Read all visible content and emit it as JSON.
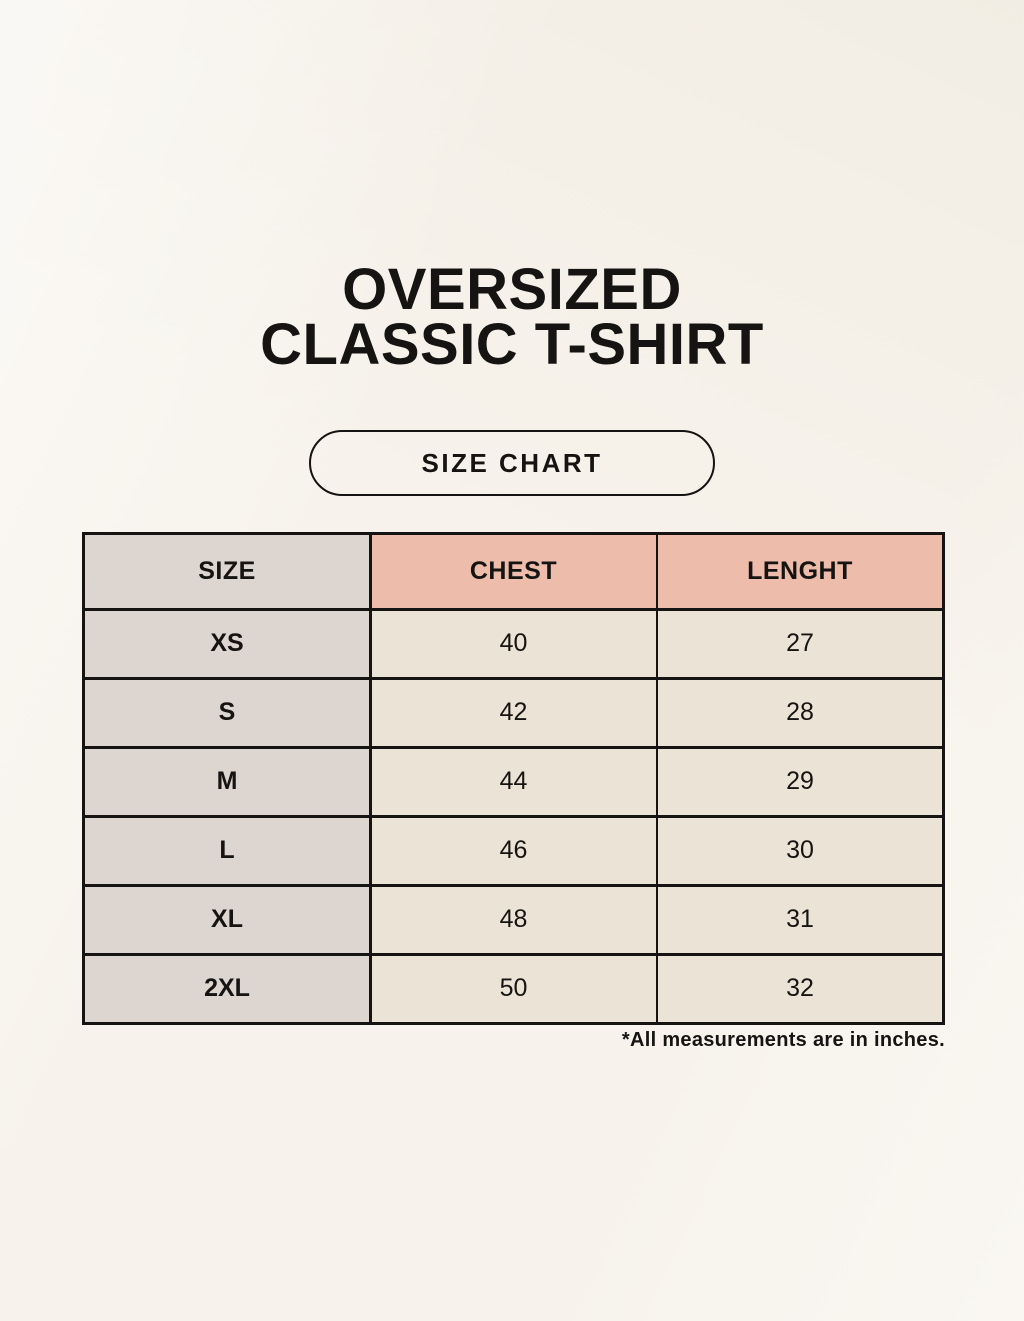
{
  "header": {
    "title_line1": "OVERSIZED",
    "title_line2": "CLASSIC T-SHIRT",
    "button_label": "SIZE CHART"
  },
  "footnote": {
    "text": "*All measurements are in inches."
  },
  "chart_data": {
    "type": "table",
    "title": "OVERSIZED CLASSIC T-SHIRT",
    "columns": [
      "SIZE",
      "CHEST",
      "LENGHT"
    ],
    "rows": [
      [
        "XS",
        40,
        27
      ],
      [
        "S",
        42,
        28
      ],
      [
        "M",
        44,
        29
      ],
      [
        "L",
        46,
        30
      ],
      [
        "XL",
        48,
        31
      ],
      [
        "2XL",
        50,
        32
      ]
    ],
    "footnote": "*All measurements are in inches."
  },
  "colors": {
    "background": "#f7f3ec",
    "cell_cream": "#ebe4d6",
    "cell_gray": "#dcd5d0",
    "header_pink": "#edbcab",
    "border": "#161412",
    "text": "#161412"
  }
}
